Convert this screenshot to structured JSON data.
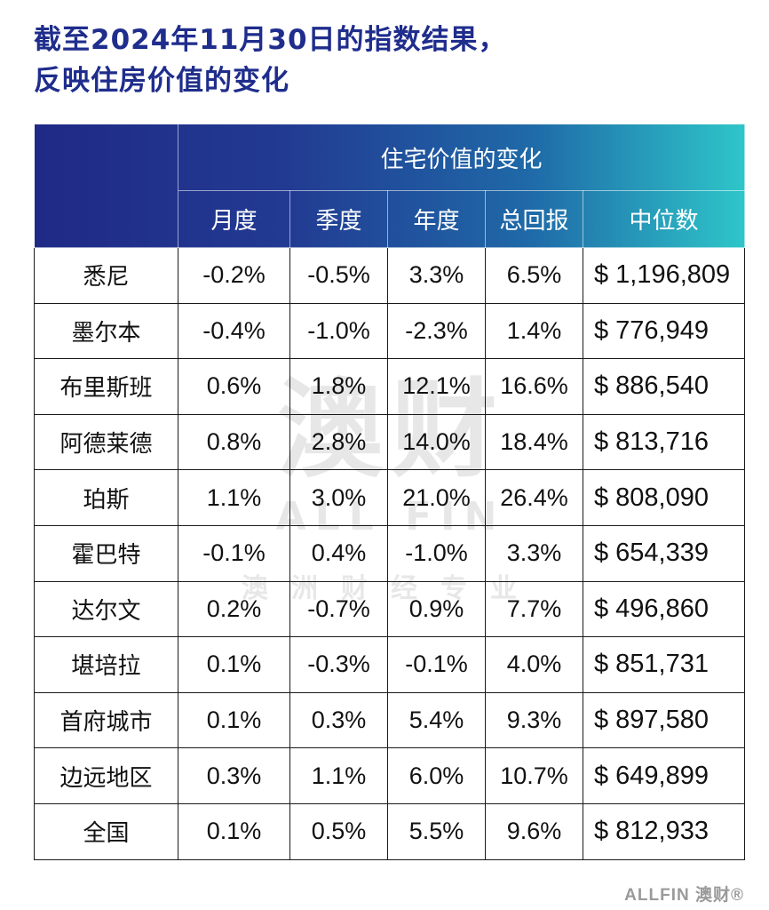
{
  "title_line1": "截至2024年11月30日的指数结果，",
  "title_line2": "反映住房价值的变化",
  "table": {
    "group_header": "住宅价值的变化",
    "columns": [
      "月度",
      "季度",
      "年度",
      "总回报",
      "中位数"
    ],
    "currency": "$",
    "rows": [
      {
        "city": "悉尼",
        "monthly": "-0.2%",
        "quarterly": "-0.5%",
        "annual": "3.3%",
        "total_return": "6.5%",
        "median": "1,196,809"
      },
      {
        "city": "墨尔本",
        "monthly": "-0.4%",
        "quarterly": "-1.0%",
        "annual": "-2.3%",
        "total_return": "1.4%",
        "median": "776,949"
      },
      {
        "city": "布里斯班",
        "monthly": "0.6%",
        "quarterly": "1.8%",
        "annual": "12.1%",
        "total_return": "16.6%",
        "median": "886,540"
      },
      {
        "city": "阿德莱德",
        "monthly": "0.8%",
        "quarterly": "2.8%",
        "annual": "14.0%",
        "total_return": "18.4%",
        "median": "813,716"
      },
      {
        "city": "珀斯",
        "monthly": "1.1%",
        "quarterly": "3.0%",
        "annual": "21.0%",
        "total_return": "26.4%",
        "median": "808,090"
      },
      {
        "city": "霍巴特",
        "monthly": "-0.1%",
        "quarterly": "0.4%",
        "annual": "-1.0%",
        "total_return": "3.3%",
        "median": "654,339"
      },
      {
        "city": "达尔文",
        "monthly": "0.2%",
        "quarterly": "-0.7%",
        "annual": "0.9%",
        "total_return": "7.7%",
        "median": "496,860"
      },
      {
        "city": "堪培拉",
        "monthly": "0.1%",
        "quarterly": "-0.3%",
        "annual": "-0.1%",
        "total_return": "4.0%",
        "median": "851,731"
      },
      {
        "city": "首府城市",
        "monthly": "0.1%",
        "quarterly": "0.3%",
        "annual": "5.4%",
        "total_return": "9.3%",
        "median": "897,580"
      },
      {
        "city": "边远地区",
        "monthly": "0.3%",
        "quarterly": "1.1%",
        "annual": "6.0%",
        "total_return": "10.7%",
        "median": "649,899"
      },
      {
        "city": "全国",
        "monthly": "0.1%",
        "quarterly": "0.5%",
        "annual": "5.5%",
        "total_return": "9.6%",
        "median": "812,933"
      }
    ]
  },
  "watermark": {
    "chinese": "澳财",
    "english": "ALL FIN",
    "tagline": "澳洲财经专业"
  },
  "footer_logo": "ALLFIN 澳财®",
  "colors": {
    "title": "#1f2d8c",
    "header_start": "#1f2a86",
    "header_end": "#2ec6c9",
    "border": "#1a1a1a"
  }
}
